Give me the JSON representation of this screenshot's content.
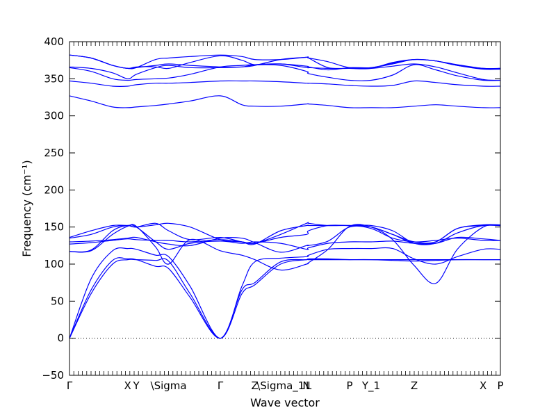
{
  "chart_data": {
    "type": "line",
    "xlabel": "Wave vector",
    "ylabel": "Frequency (cm⁻¹)",
    "ylim": [
      -50,
      400
    ],
    "yticks": [
      -50,
      0,
      50,
      100,
      150,
      200,
      250,
      300,
      350,
      400
    ],
    "x_labels": [
      {
        "label": "Γ",
        "x": 0.0
      },
      {
        "label": "X",
        "x": 1.35
      },
      {
        "label": "Y",
        "x": 1.55
      },
      {
        "label": "\\Sigma",
        "x": 2.3
      },
      {
        "label": "Γ",
        "x": 3.5
      },
      {
        "label": "Z",
        "x": 4.3
      },
      {
        "label": "\\Sigma_1",
        "x": 4.9
      },
      {
        "label": "N",
        "x": 5.5
      },
      {
        "label": "L",
        "x": 5.55
      },
      {
        "label": "P",
        "x": 6.5
      },
      {
        "label": "Y_1",
        "x": 7.0
      },
      {
        "label": "Z",
        "x": 8.0
      },
      {
        "label": "X",
        "x": 9.6
      },
      {
        "label": "P",
        "x": 10.0
      }
    ],
    "xlim": [
      0,
      10
    ],
    "zero_line": true,
    "line_color": "#0000ff",
    "x": [
      0,
      0.5,
      1.0,
      1.35,
      1.55,
      2.0,
      2.3,
      2.8,
      3.5,
      4.0,
      4.3,
      4.9,
      5.5,
      5.55,
      6.0,
      6.5,
      7.0,
      7.5,
      8.0,
      8.5,
      9.0,
      9.6,
      10.0
    ],
    "series": [
      {
        "values": [
          0,
          60,
          100,
          106,
          106,
          105,
          104,
          60,
          0,
          60,
          72,
          100,
          106,
          106,
          106,
          106,
          106,
          105,
          104,
          105,
          106,
          106,
          106
        ]
      },
      {
        "values": [
          0,
          65,
          105,
          107,
          106,
          97,
          94,
          55,
          0,
          65,
          75,
          103,
          106,
          107,
          107,
          106,
          106,
          106,
          106,
          106,
          106,
          106,
          106
        ]
      },
      {
        "values": [
          0,
          80,
          118,
          121,
          120,
          112,
          110,
          70,
          0,
          70,
          103,
          108,
          110,
          112,
          120,
          121,
          121,
          121,
          107,
          100,
          110,
          120,
          120
        ]
      },
      {
        "values": [
          117,
          118,
          140,
          151,
          151,
          123,
          100,
          133,
          118,
          112,
          106,
          92,
          100,
          102,
          120,
          151,
          150,
          133,
          98,
          74,
          120,
          150,
          152
        ]
      },
      {
        "values": [
          117,
          119,
          145,
          152,
          150,
          130,
          120,
          128,
          131,
          128,
          130,
          128,
          120,
          122,
          128,
          130,
          130,
          131,
          128,
          128,
          136,
          134,
          132
        ]
      },
      {
        "values": [
          127,
          129,
          132,
          134,
          133,
          132,
          132,
          130,
          133,
          130,
          128,
          136,
          140,
          145,
          152,
          152,
          152,
          145,
          128,
          128,
          142,
          152,
          152
        ]
      },
      {
        "values": [
          130,
          131,
          133,
          135,
          136,
          130,
          127,
          125,
          135,
          135,
          129,
          116,
          125,
          125,
          131,
          150,
          148,
          135,
          130,
          132,
          135,
          132,
          132
        ]
      },
      {
        "values": [
          135,
          140,
          150,
          152,
          150,
          153,
          155,
          150,
          133,
          130,
          128,
          140,
          155,
          155,
          152,
          152,
          150,
          140,
          130,
          130,
          148,
          153,
          153
        ]
      },
      {
        "values": [
          136,
          145,
          152,
          152,
          150,
          155,
          145,
          133,
          136,
          130,
          127,
          145,
          152,
          152,
          152,
          152,
          150,
          140,
          128,
          130,
          148,
          152,
          152
        ]
      },
      {
        "values": [
          327,
          320,
          312,
          311,
          312,
          314,
          316,
          320,
          327,
          315,
          313,
          313,
          316,
          316,
          314,
          311,
          311,
          311,
          313,
          315,
          313,
          311,
          311
        ]
      },
      {
        "values": [
          347,
          344,
          340,
          340,
          342,
          344,
          344,
          345,
          347,
          347,
          347,
          346,
          344,
          344,
          343,
          341,
          340,
          341,
          347,
          345,
          342,
          340,
          340
        ]
      },
      {
        "values": [
          365,
          360,
          350,
          348,
          349,
          350,
          351,
          356,
          366,
          368,
          369,
          368,
          360,
          357,
          352,
          348,
          348,
          355,
          369,
          362,
          354,
          348,
          348
        ]
      },
      {
        "values": [
          366,
          364,
          358,
          350,
          356,
          365,
          368,
          365,
          365,
          366,
          369,
          370,
          365,
          365,
          364,
          364,
          364,
          367,
          370,
          366,
          358,
          349,
          348
        ]
      },
      {
        "values": [
          382,
          378,
          368,
          364,
          366,
          366,
          364,
          372,
          381,
          375,
          369,
          370,
          367,
          366,
          362,
          365,
          365,
          370,
          376,
          374,
          368,
          363,
          363
        ]
      },
      {
        "values": [
          382,
          378,
          368,
          364,
          365,
          376,
          378,
          380,
          382,
          380,
          376,
          376,
          379,
          378,
          365,
          364,
          364,
          372,
          376,
          374,
          369,
          364,
          364
        ]
      },
      {
        "values": [
          382,
          378,
          368,
          364,
          365,
          368,
          370,
          368,
          366,
          366,
          368,
          376,
          379,
          378,
          373,
          365,
          365,
          371,
          376,
          374,
          368,
          364,
          364
        ]
      }
    ]
  }
}
